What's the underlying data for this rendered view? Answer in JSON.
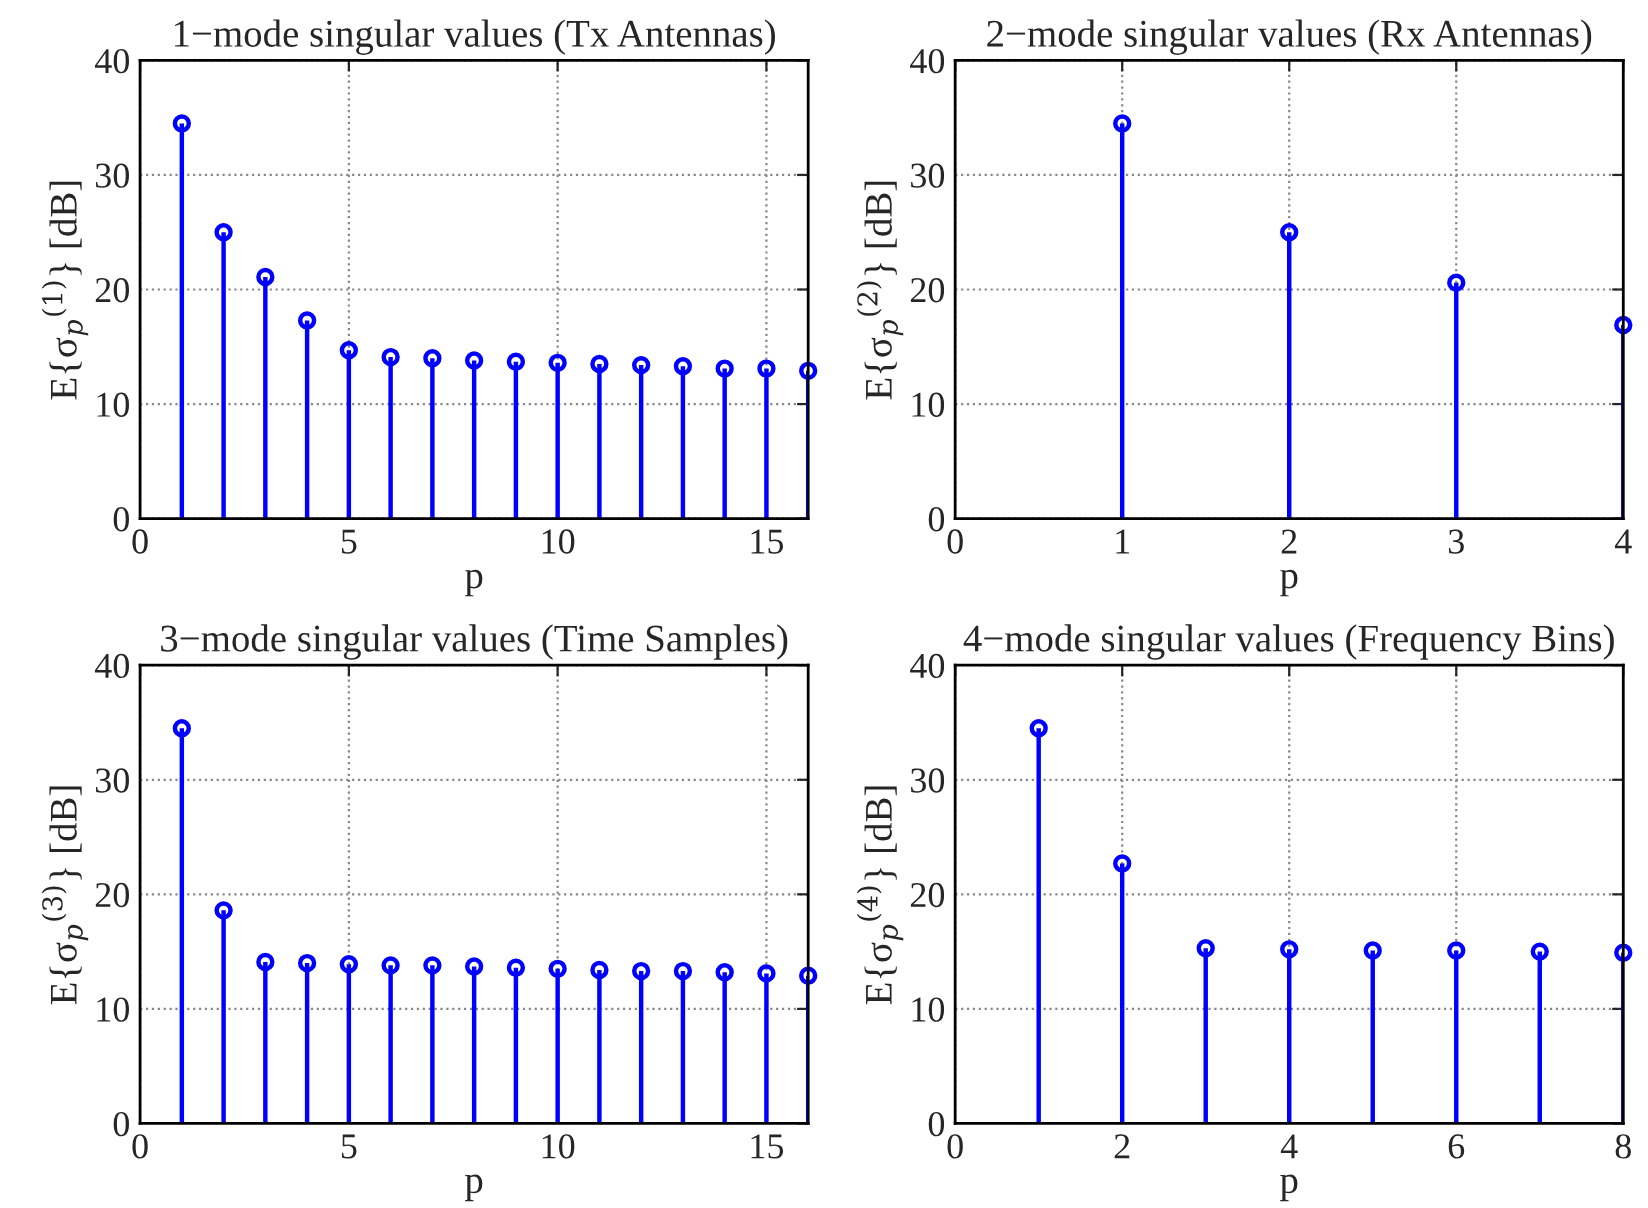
{
  "chart_data": [
    {
      "type": "lollipop",
      "title": "1−mode singular values (Tx Antennas)",
      "xlabel": "p",
      "ylabel": "E{σ$_{p}$$^{(1)}$} [dB]",
      "x": [
        1,
        2,
        3,
        4,
        5,
        6,
        7,
        8,
        9,
        10,
        11,
        12,
        13,
        14,
        15,
        16
      ],
      "series": [
        {
          "color": "#0000ff",
          "values": [
            34.5,
            25,
            21.1,
            17.3,
            14.7,
            14.1,
            14.0,
            13.8,
            13.7,
            13.6,
            13.5,
            13.4,
            13.3,
            13.1,
            13.1,
            12.9
          ]
        }
      ],
      "xlim": [
        0,
        16
      ],
      "xticks": [
        0,
        5,
        10,
        15
      ],
      "ylim": [
        0,
        40
      ],
      "yticks": [
        0,
        10,
        20,
        30,
        40
      ],
      "grid": true,
      "marker": "circle",
      "line_style": "solid"
    },
    {
      "type": "lollipop",
      "title": "2−mode singular values (Rx Antennas)",
      "xlabel": "p",
      "ylabel": "E{σ$_{p}$$^{(2)}$} [dB]",
      "x": [
        1,
        2,
        3,
        4
      ],
      "series": [
        {
          "color": "#0000ff",
          "values": [
            34.5,
            25,
            20.6,
            16.9
          ]
        }
      ],
      "xlim": [
        0,
        4
      ],
      "xticks": [
        0,
        1,
        2,
        3,
        4
      ],
      "ylim": [
        0,
        40
      ],
      "yticks": [
        0,
        10,
        20,
        30,
        40
      ],
      "grid": true,
      "marker": "circle",
      "line_style": "solid"
    },
    {
      "type": "lollipop",
      "title": "3−mode singular values (Time Samples)",
      "xlabel": "p",
      "ylabel": "E{σ$_{p}$$^{(3)}$} [dB]",
      "x": [
        1,
        2,
        3,
        4,
        5,
        6,
        7,
        8,
        9,
        10,
        11,
        12,
        13,
        14,
        15,
        16
      ],
      "series": [
        {
          "color": "#0000ff",
          "values": [
            34.5,
            18.6,
            14.1,
            14.0,
            13.9,
            13.8,
            13.8,
            13.7,
            13.6,
            13.5,
            13.4,
            13.3,
            13.3,
            13.2,
            13.1,
            12.9
          ]
        }
      ],
      "xlim": [
        0,
        16
      ],
      "xticks": [
        0,
        5,
        10,
        15
      ],
      "ylim": [
        0,
        40
      ],
      "yticks": [
        0,
        10,
        20,
        30,
        40
      ],
      "grid": true,
      "marker": "circle",
      "line_style": "solid"
    },
    {
      "type": "lollipop",
      "title": "4−mode singular values (Frequency Bins)",
      "xlabel": "p",
      "ylabel": "E{σ$_{p}$$^{(4)}$} [dB]",
      "x": [
        1,
        2,
        3,
        4,
        5,
        6,
        7,
        8
      ],
      "series": [
        {
          "color": "#0000ff",
          "values": [
            34.5,
            22.7,
            15.3,
            15.2,
            15.1,
            15.1,
            15.0,
            14.9
          ]
        }
      ],
      "xlim": [
        0,
        8
      ],
      "xticks": [
        0,
        2,
        4,
        6,
        8
      ],
      "ylim": [
        0,
        40
      ],
      "yticks": [
        0,
        10,
        20,
        30,
        40
      ],
      "grid": true,
      "marker": "circle",
      "line_style": "solid"
    }
  ]
}
